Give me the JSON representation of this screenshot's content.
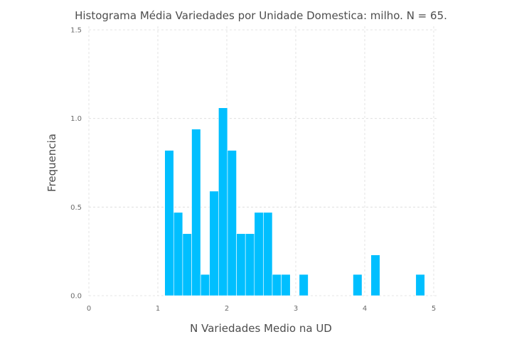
{
  "chart_data": {
    "type": "bar",
    "title": "Histograma Média Variedades por Unidade Domestica: milho. N = 65.",
    "xlabel": "N Variedades Medio na UD",
    "ylabel": "Frequencia",
    "xlim": [
      0,
      5
    ],
    "ylim": [
      0,
      1.5
    ],
    "xticks": [
      "0",
      "1",
      "2",
      "3",
      "4",
      "5"
    ],
    "yticks": [
      "0.0",
      "0.5",
      "1.0",
      "1.5"
    ],
    "grid": true,
    "bar_color": "#00bfff",
    "bin_width": 0.13,
    "bins": [
      {
        "x0": 1.1,
        "value": 0.82
      },
      {
        "x0": 1.23,
        "value": 0.47
      },
      {
        "x0": 1.36,
        "value": 0.35
      },
      {
        "x0": 1.49,
        "value": 0.94
      },
      {
        "x0": 1.62,
        "value": 0.12
      },
      {
        "x0": 1.75,
        "value": 0.59
      },
      {
        "x0": 1.88,
        "value": 1.06
      },
      {
        "x0": 2.01,
        "value": 0.82
      },
      {
        "x0": 2.14,
        "value": 0.35
      },
      {
        "x0": 2.27,
        "value": 0.35
      },
      {
        "x0": 2.4,
        "value": 0.47
      },
      {
        "x0": 2.53,
        "value": 0.47
      },
      {
        "x0": 2.66,
        "value": 0.12
      },
      {
        "x0": 2.79,
        "value": 0.12
      },
      {
        "x0": 3.05,
        "value": 0.12
      },
      {
        "x0": 3.83,
        "value": 0.12
      },
      {
        "x0": 4.09,
        "value": 0.23
      },
      {
        "x0": 4.74,
        "value": 0.12
      }
    ]
  }
}
